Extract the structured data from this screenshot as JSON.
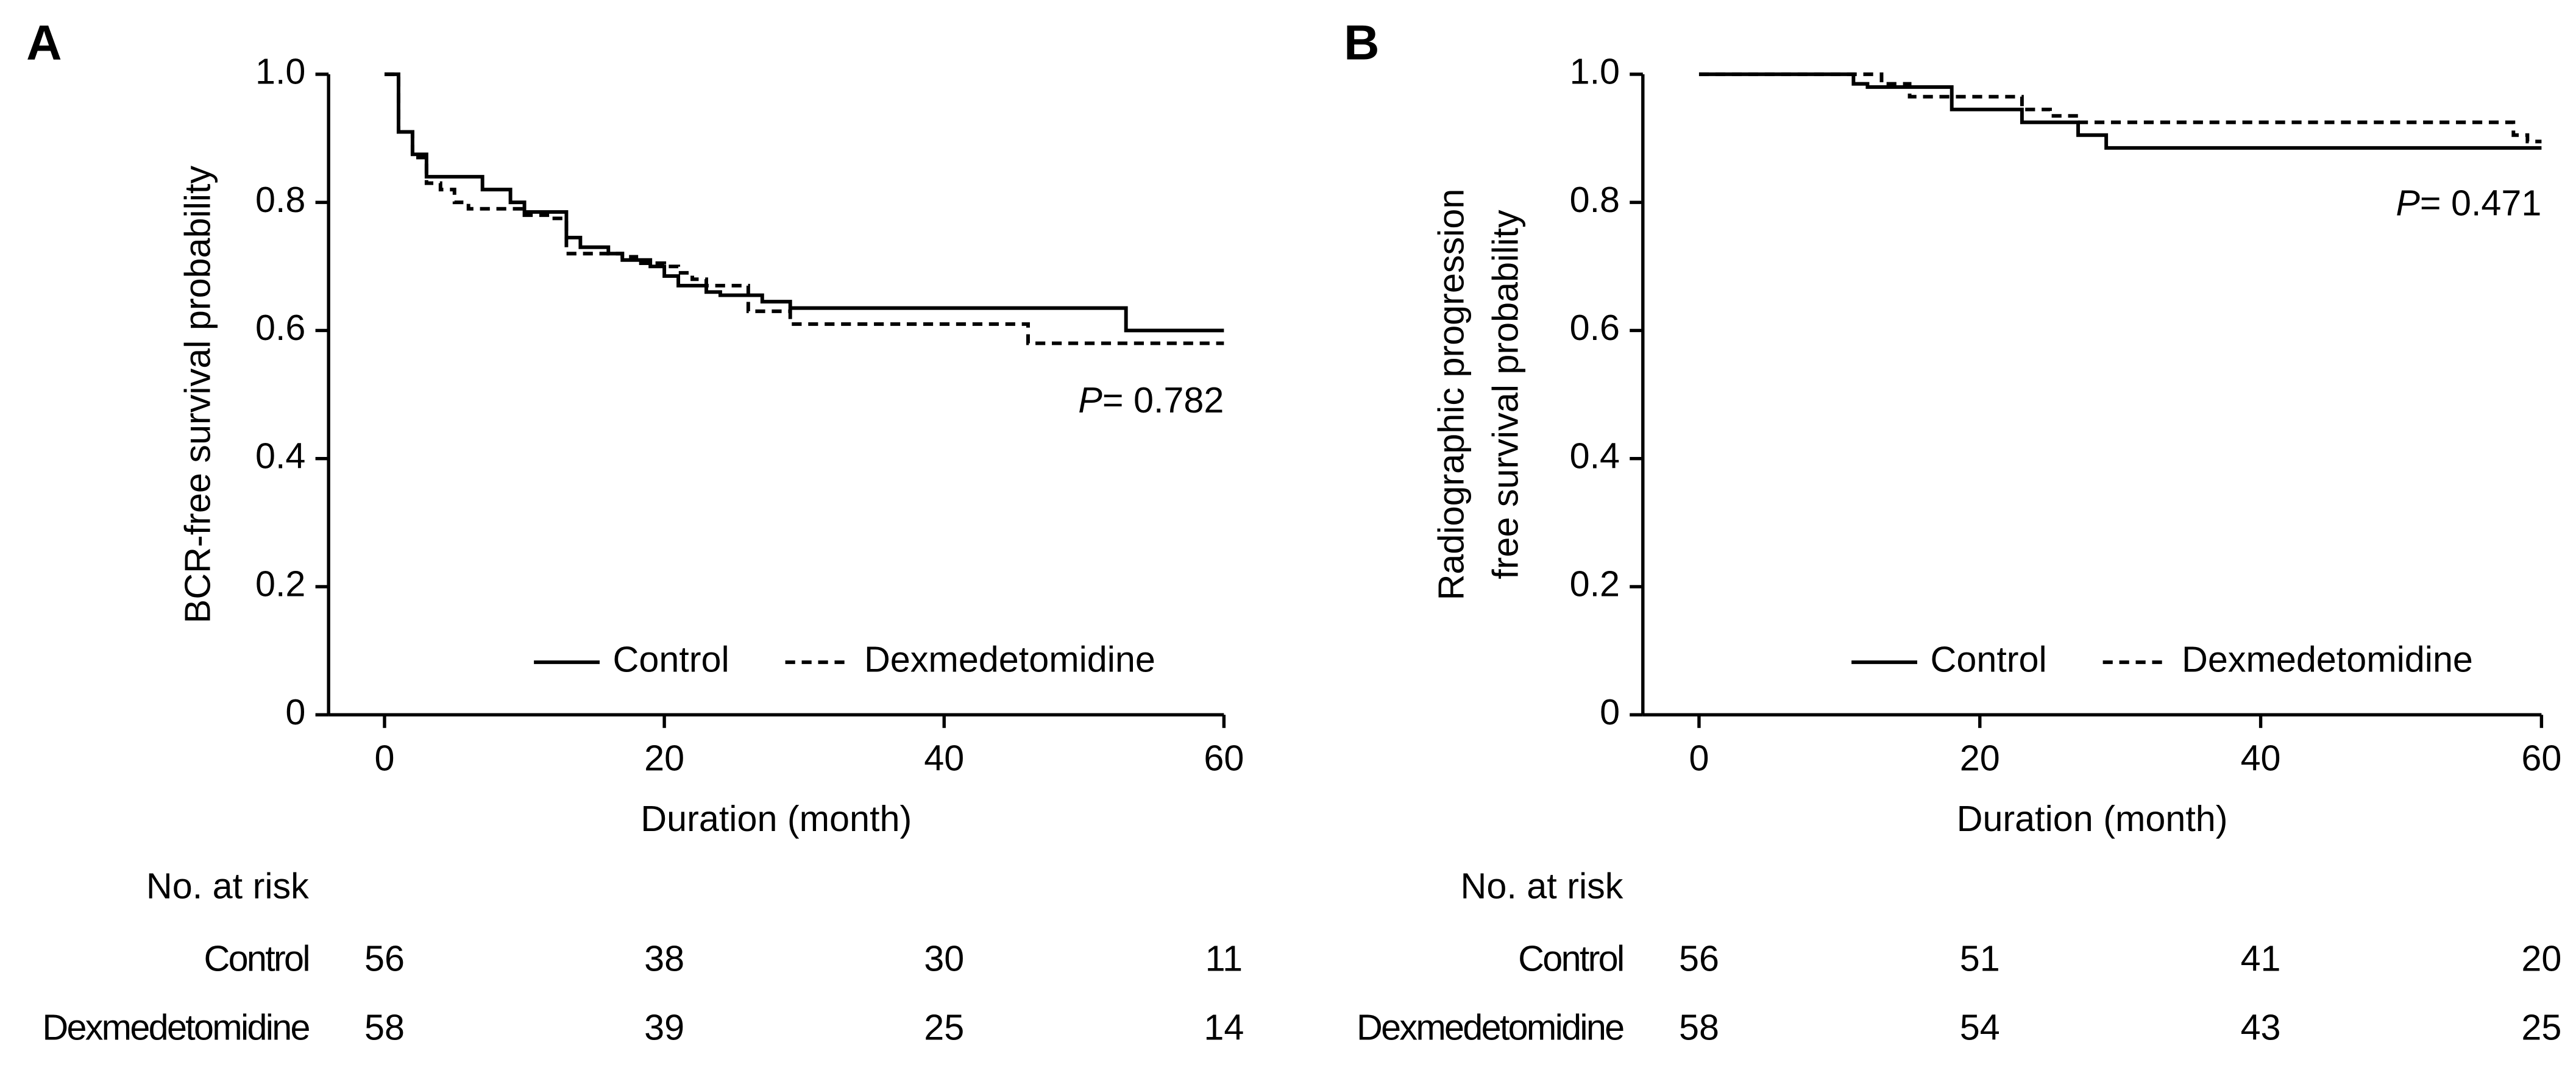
{
  "chart_data": [
    {
      "type": "step",
      "panel_label": "A",
      "ylabel": [
        "BCR-free survival probability"
      ],
      "xlabel": "Duration (month)",
      "xlim": [
        -4,
        60
      ],
      "ylim": [
        0,
        1
      ],
      "xticks": [
        0,
        20,
        40,
        60
      ],
      "yticks": [
        0,
        0.2,
        0.4,
        0.6,
        0.8,
        {
          "value": 1,
          "label": "1.0"
        }
      ],
      "legend": "lower right",
      "annotation": {
        "italic": "P",
        "text": "= 0.782"
      },
      "series": [
        {
          "name": "Control",
          "color": "#000000",
          "line_style": "solid",
          "x": [
            0,
            1,
            2,
            3,
            7,
            9,
            10,
            13,
            14,
            16,
            17,
            19,
            20,
            21,
            23,
            24,
            27,
            29,
            53,
            60
          ],
          "values": [
            1.0,
            0.91,
            0.875,
            0.84,
            0.82,
            0.8,
            0.785,
            0.745,
            0.73,
            0.72,
            0.71,
            0.7,
            0.685,
            0.67,
            0.66,
            0.655,
            0.645,
            0.635,
            0.6,
            0.6
          ]
        },
        {
          "name": "Dexmedetomidine",
          "color": "#000000",
          "line_style": "dashed",
          "x": [
            0,
            1,
            2,
            3,
            4,
            5,
            6,
            10,
            12,
            13,
            17,
            18,
            20,
            21,
            22,
            23,
            26,
            29,
            46,
            60
          ],
          "values": [
            1.0,
            0.91,
            0.87,
            0.83,
            0.82,
            0.8,
            0.79,
            0.78,
            0.775,
            0.72,
            0.715,
            0.705,
            0.7,
            0.69,
            0.68,
            0.67,
            0.63,
            0.61,
            0.58,
            0.58
          ]
        }
      ],
      "risk_table": {
        "title": "No. at risk",
        "rows": [
          {
            "name": "Control",
            "values": [
              56,
              38,
              30,
              11
            ]
          },
          {
            "name": "Dexmedetomidine",
            "values": [
              58,
              39,
              25,
              14
            ]
          }
        ]
      }
    },
    {
      "type": "step",
      "panel_label": "B",
      "ylabel": [
        "Radiographic progression",
        "free survival probability"
      ],
      "xlabel": "Duration (month)",
      "xlim": [
        -4,
        60
      ],
      "ylim": [
        0,
        1
      ],
      "xticks": [
        0,
        20,
        40,
        60
      ],
      "yticks": [
        0,
        0.2,
        0.4,
        0.6,
        0.8,
        {
          "value": 1,
          "label": "1.0"
        }
      ],
      "legend": "lower right",
      "annotation": {
        "italic": "P",
        "text": "= 0.471"
      },
      "series": [
        {
          "name": "Control",
          "color": "#000000",
          "line_style": "solid",
          "x": [
            0,
            11,
            12,
            18,
            23,
            27,
            29,
            60
          ],
          "values": [
            1.0,
            0.985,
            0.98,
            0.945,
            0.925,
            0.905,
            0.885,
            0.885
          ]
        },
        {
          "name": "Dexmedetomidine",
          "color": "#000000",
          "line_style": "dashed",
          "x": [
            0,
            13,
            15,
            23,
            25,
            27,
            58,
            59,
            60
          ],
          "values": [
            1.0,
            0.985,
            0.965,
            0.945,
            0.935,
            0.925,
            0.905,
            0.895,
            0.895
          ]
        }
      ],
      "risk_table": {
        "title": "No. at risk",
        "rows": [
          {
            "name": "Control",
            "values": [
              56,
              51,
              41,
              20
            ]
          },
          {
            "name": "Dexmedetomidine",
            "values": [
              58,
              54,
              43,
              25
            ]
          }
        ]
      }
    }
  ]
}
